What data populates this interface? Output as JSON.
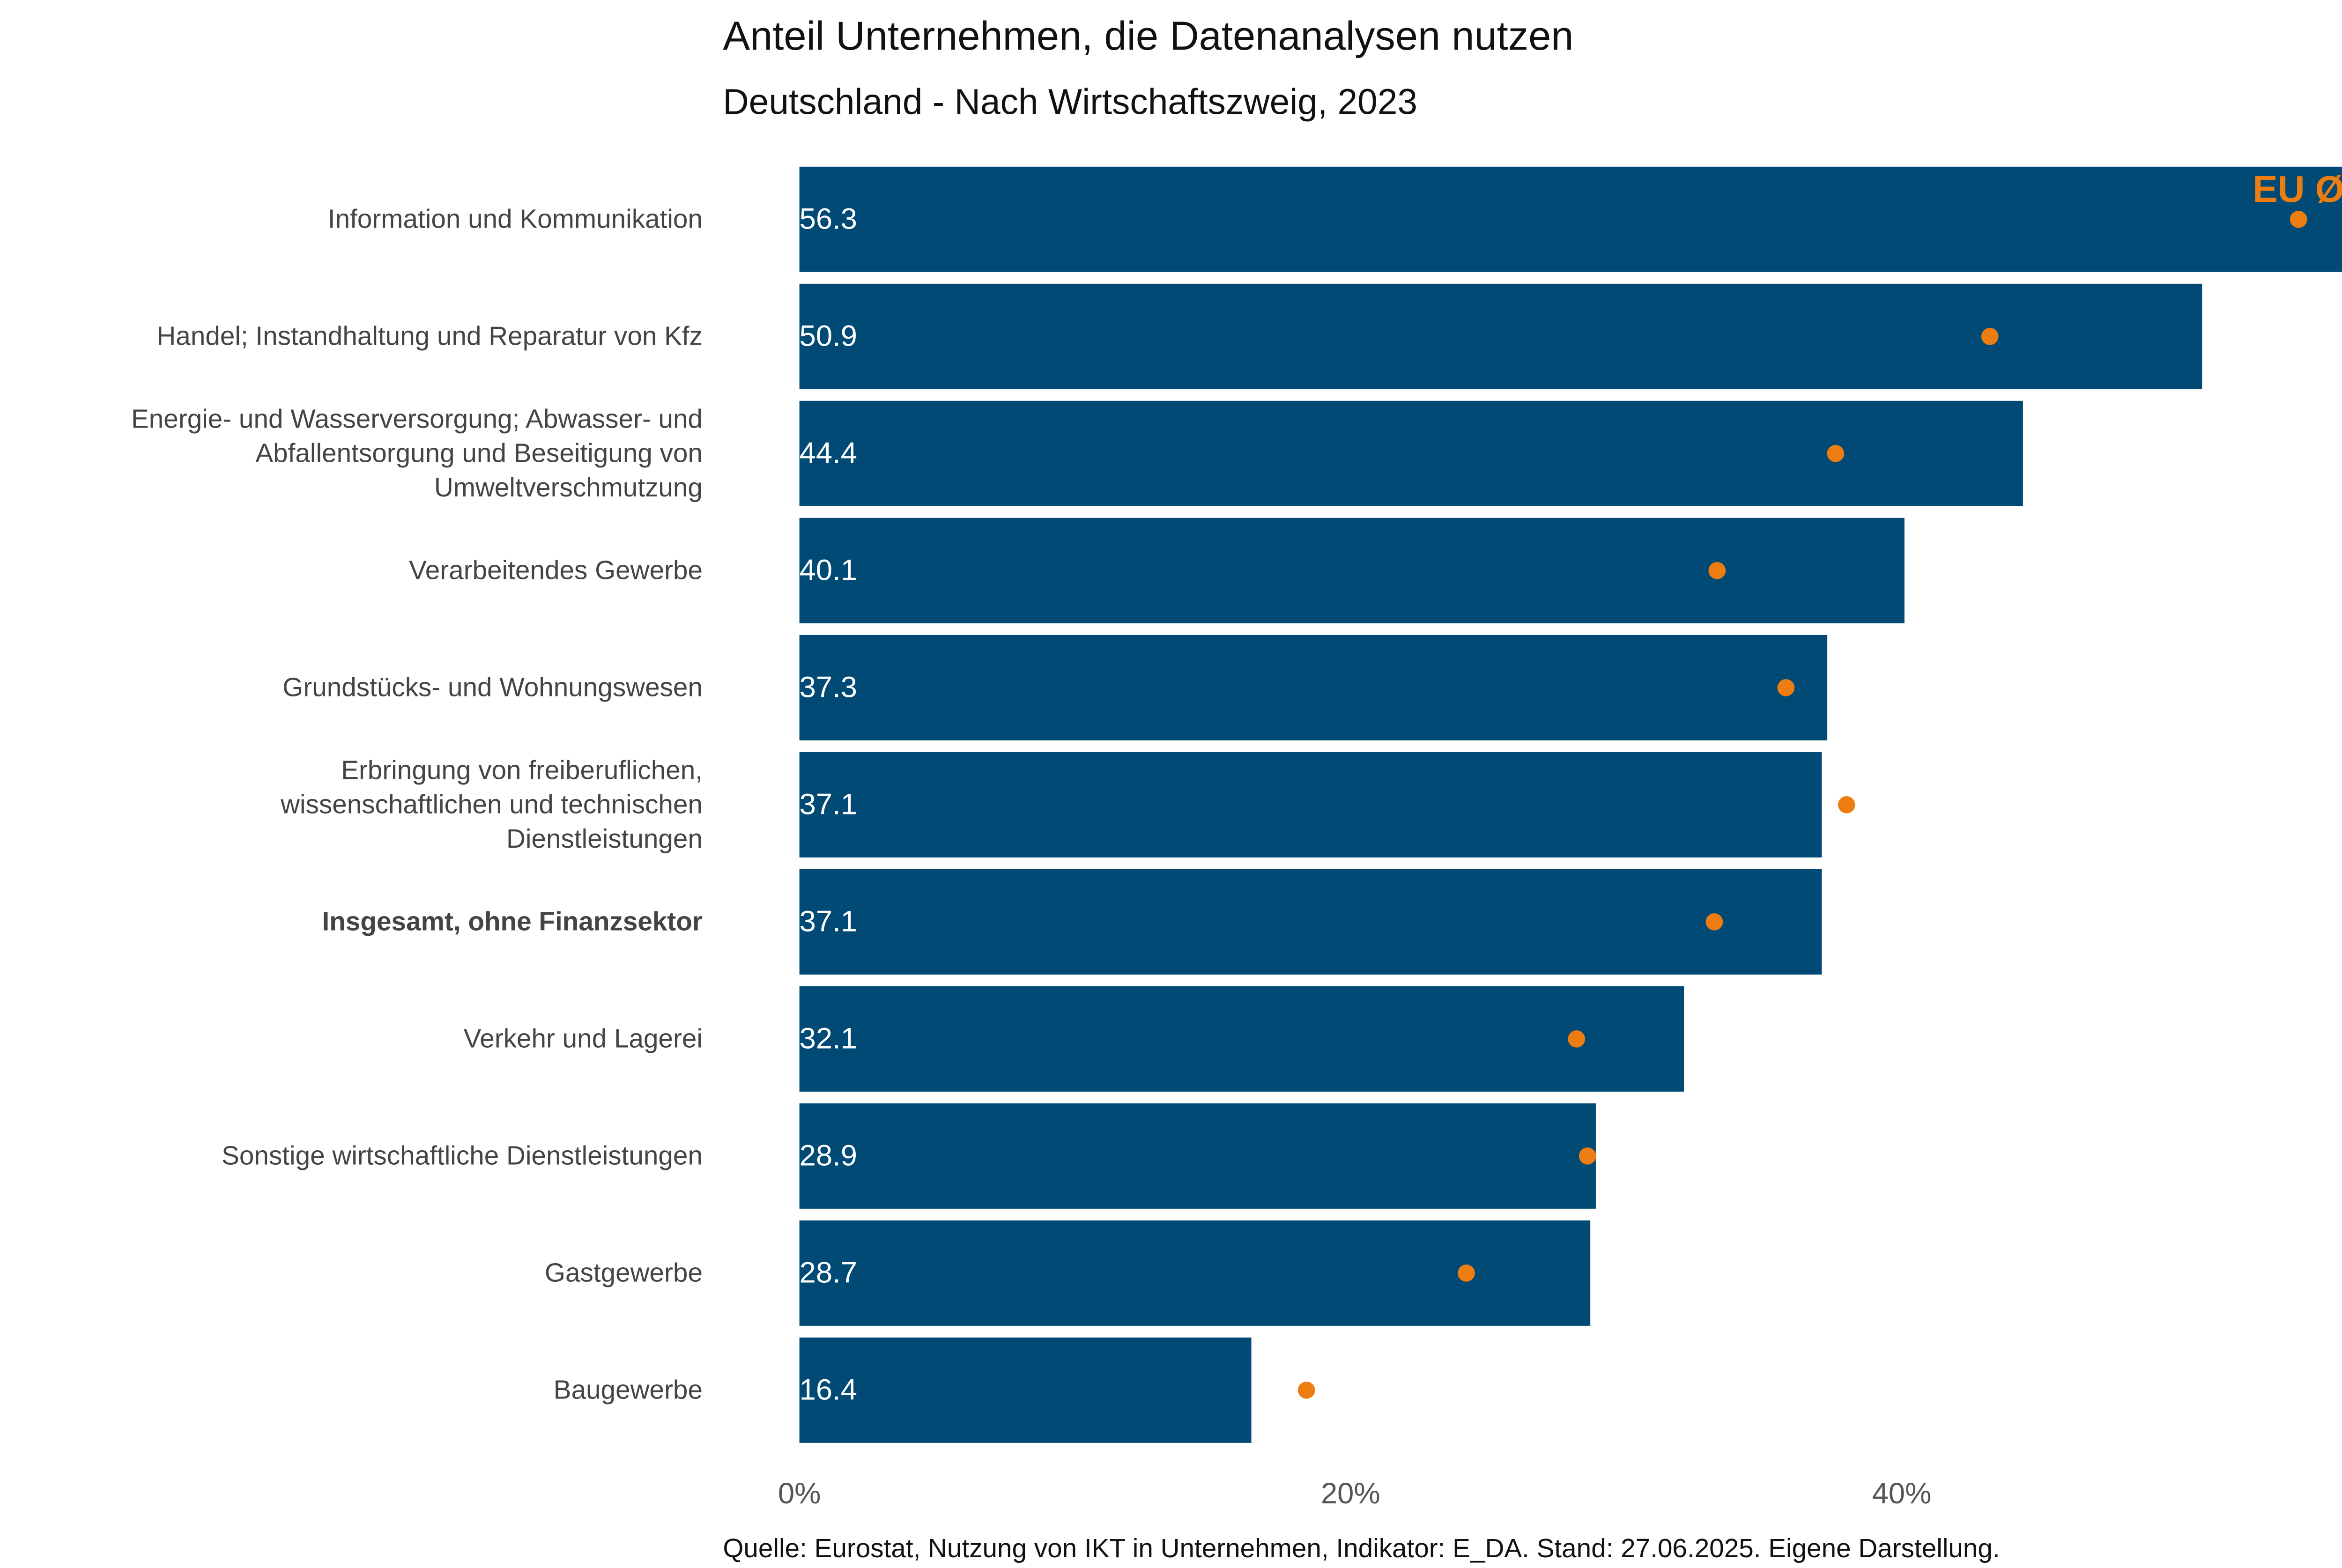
{
  "chart_data": {
    "type": "bar",
    "orientation": "horizontal",
    "title": "Anteil Unternehmen, die Datenanalysen nutzen",
    "subtitle": "Deutschland - Nach Wirtschaftszweig, 2023",
    "source": "Quelle: Eurostat, Nutzung von IKT in Unternehmen, Indikator: E_DA. Stand: 27.06.2025. Eigene Darstellung.",
    "categories": [
      "Information und Kommunikation",
      "Handel; Instandhaltung und Reparatur von Kfz",
      "Energie- und Wasserversorgung; Abwasser- und\nAbfallentsorgung und Beseitigung von\nUmweltverschmutzung",
      "Verarbeitendes Gewerbe",
      "Grundstücks- und Wohnungswesen",
      "Erbringung von freiberuflichen,\nwissenschaftlichen und technischen\nDienstleistungen",
      "Insgesamt, ohne Finanzsektor",
      "Verkehr und Lagerei",
      "Sonstige wirtschaftliche Dienstleistungen",
      "Gastgewerbe",
      "Baugewerbe"
    ],
    "highlighted_categories": [
      6
    ],
    "values": [
      56.3,
      50.9,
      44.4,
      40.1,
      37.3,
      37.1,
      37.1,
      32.1,
      28.9,
      28.7,
      16.4
    ],
    "color": "#004a75",
    "eu_average": {
      "name": "EU Ø",
      "color": "#ee7d11",
      "values": [
        54.4,
        43.2,
        37.6,
        33.3,
        35.8,
        38.0,
        33.2,
        28.2,
        28.6,
        24.2,
        18.4
      ]
    },
    "xlim": [
      0,
      56.5
    ],
    "xticks": [
      {
        "value": 0,
        "label": "0%"
      },
      {
        "value": 20,
        "label": "20%"
      },
      {
        "value": 40,
        "label": "40%"
      }
    ],
    "grid": false
  }
}
